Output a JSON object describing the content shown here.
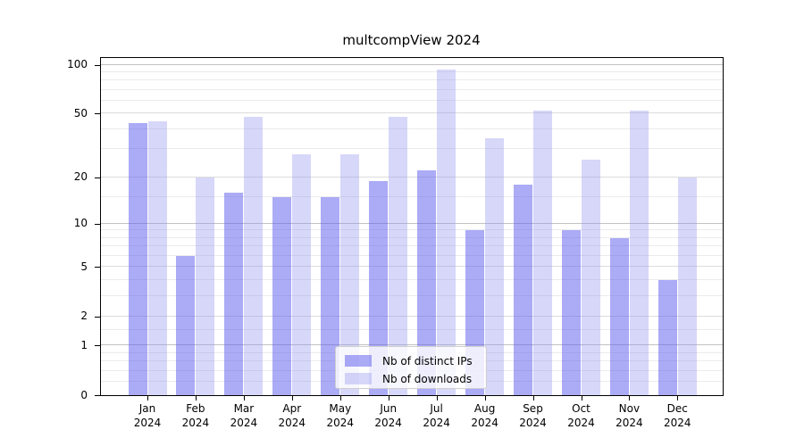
{
  "title": "multcompView 2024",
  "colors": {
    "ips_bar": "rgba(93,93,238,0.52)",
    "downloads_bar": "rgba(150,150,240,0.38)",
    "ips_bar_hex": "#aaaaf6",
    "downloads_bar_hex": "#d7d7f9",
    "major_grid": "#c2c2c2",
    "mid_grid": "#dcdcdc",
    "minor_grid": "#ebebeb",
    "spine": "#000000"
  },
  "legend": {
    "items": [
      {
        "label": "Nb of distinct IPs"
      },
      {
        "label": "Nb of downloads"
      }
    ]
  },
  "x_axis": {
    "months": [
      "Jan",
      "Feb",
      "Mar",
      "Apr",
      "May",
      "Jun",
      "Jul",
      "Aug",
      "Sep",
      "Oct",
      "Nov",
      "Dec"
    ],
    "year": "2024"
  },
  "y_axis": {
    "tick_labels": [
      "0",
      "1",
      "2",
      "5",
      "10",
      "20",
      "50",
      "100"
    ]
  },
  "chart_data": {
    "type": "bar",
    "title": "multcompView 2024",
    "categories": [
      "Jan 2024",
      "Feb 2024",
      "Mar 2024",
      "Apr 2024",
      "May 2024",
      "Jun 2024",
      "Jul 2024",
      "Aug 2024",
      "Sep 2024",
      "Oct 2024",
      "Nov 2024",
      "Dec 2024"
    ],
    "series": [
      {
        "name": "Nb of distinct IPs",
        "values": [
          44,
          6,
          16,
          15,
          15,
          19,
          22,
          9,
          18,
          9,
          8,
          4
        ]
      },
      {
        "name": "Nb of downloads",
        "values": [
          45,
          20,
          48,
          28,
          28,
          48,
          93,
          35,
          52,
          26,
          52,
          20
        ]
      }
    ],
    "xlabel": "",
    "ylabel": "",
    "yscale": "log1p",
    "yticks": [
      0,
      1,
      2,
      5,
      10,
      20,
      50,
      100
    ],
    "ylim": [
      0,
      110
    ],
    "grid": "both",
    "legend_position": "lower center"
  }
}
